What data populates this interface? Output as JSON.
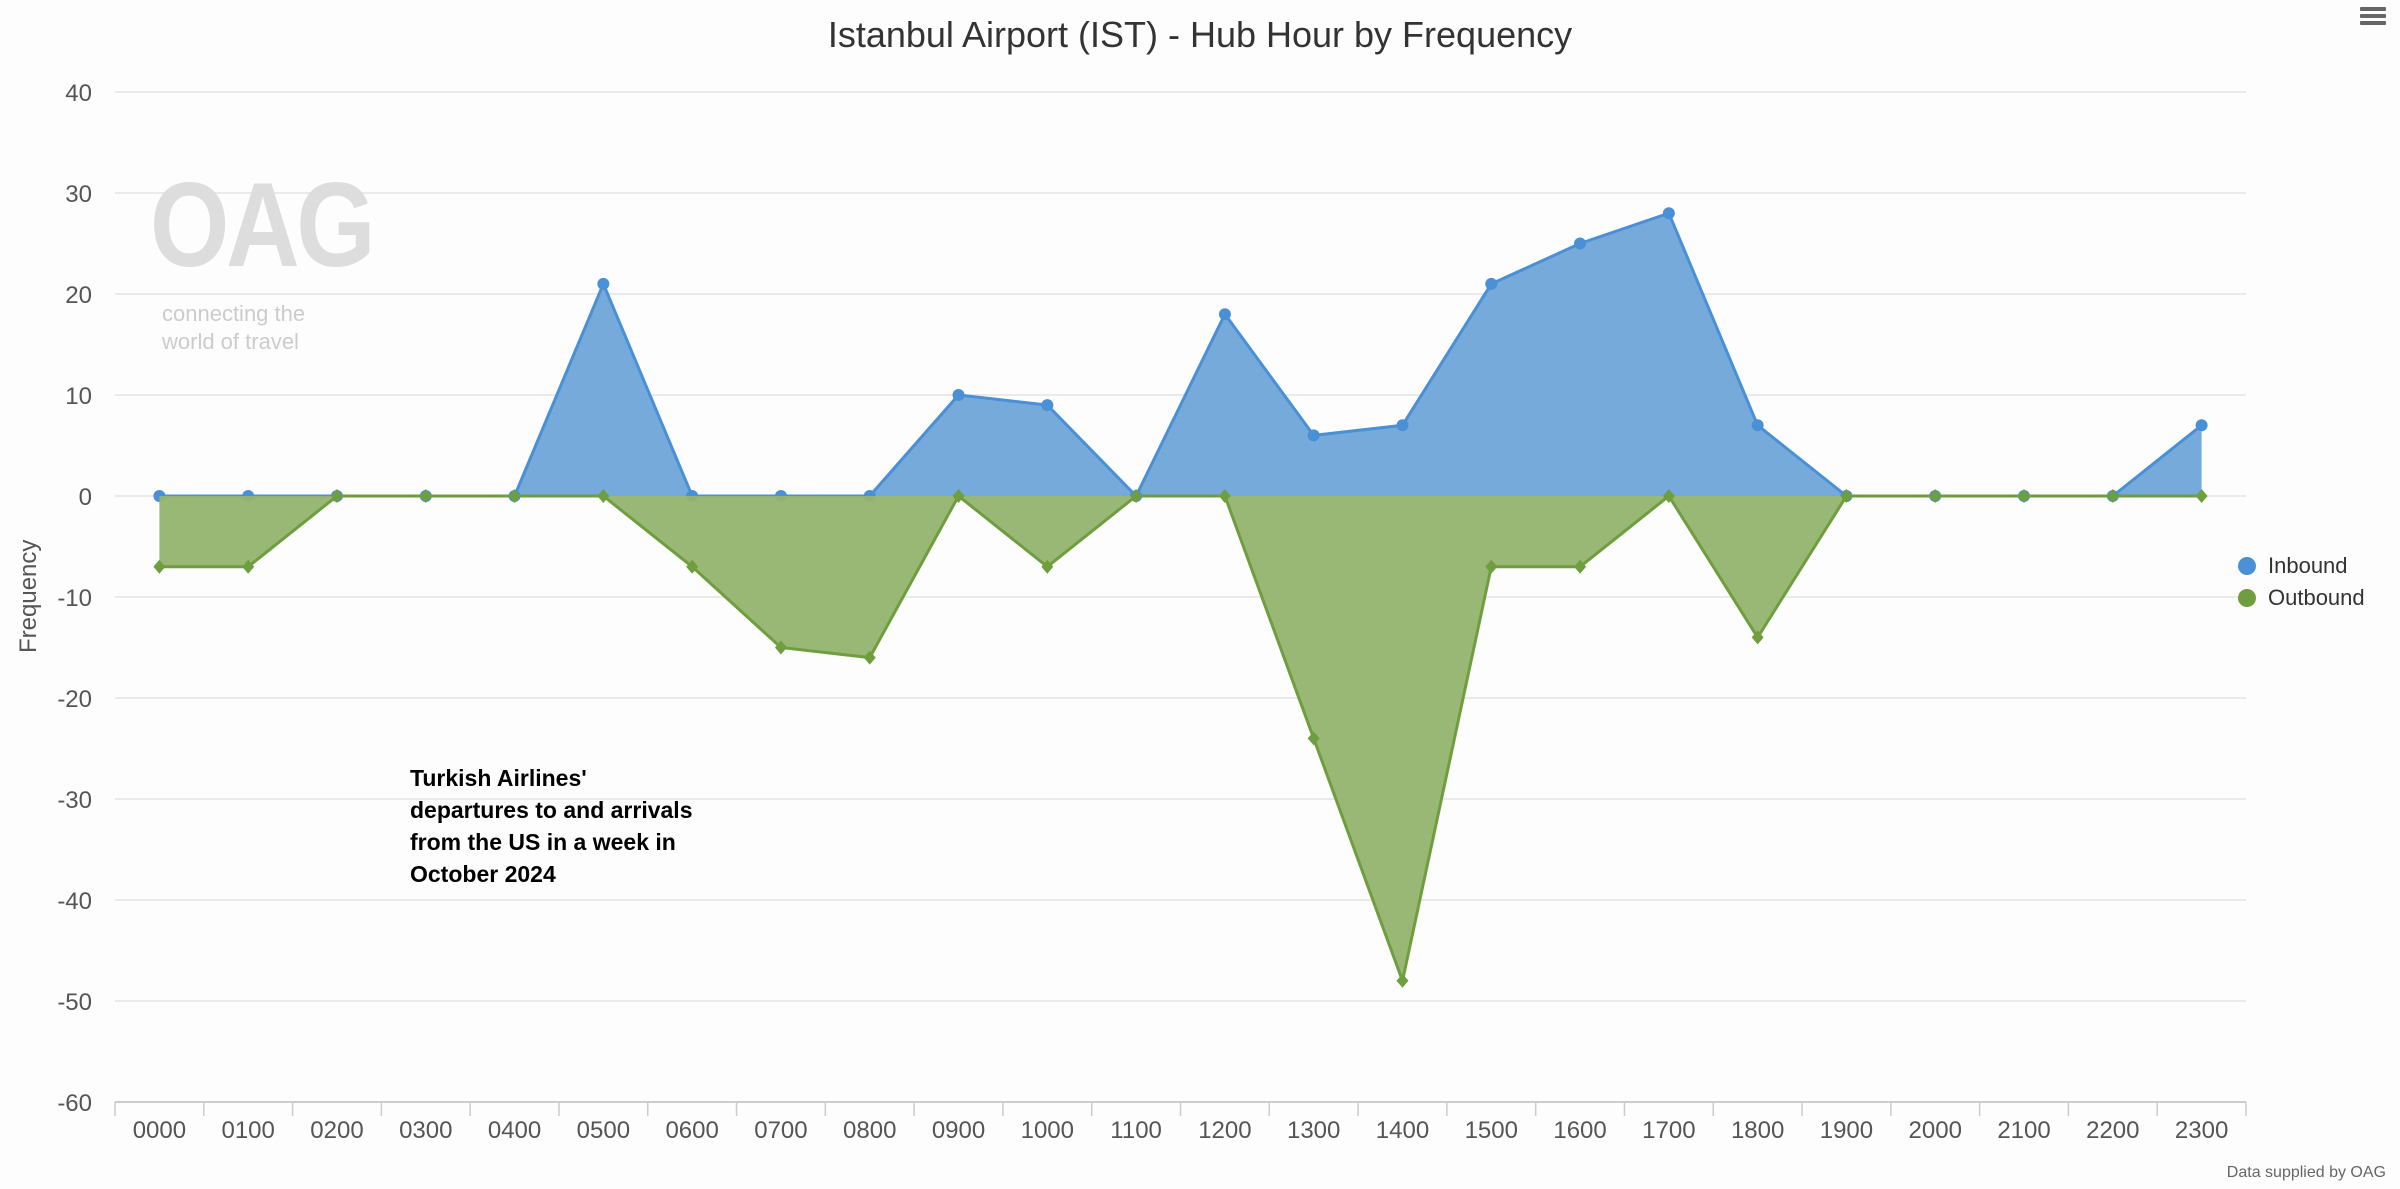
{
  "chart_data": {
    "type": "area",
    "title": "Istanbul Airport (IST) - Hub Hour by Frequency",
    "xlabel": "",
    "ylabel": "Frequency",
    "ylim": [
      -60,
      40
    ],
    "yticks": [
      40,
      30,
      20,
      10,
      0,
      -10,
      -20,
      -30,
      -40,
      -50,
      -60
    ],
    "grid": true,
    "legend_position": "right",
    "categories": [
      "0000",
      "0100",
      "0200",
      "0300",
      "0400",
      "0500",
      "0600",
      "0700",
      "0800",
      "0900",
      "1000",
      "1100",
      "1200",
      "1300",
      "1400",
      "1500",
      "1600",
      "1700",
      "1800",
      "1900",
      "2000",
      "2100",
      "2200",
      "2300"
    ],
    "series": [
      {
        "name": "Inbound",
        "color": "#4a90d6",
        "fill": "#6fa5d8",
        "marker": "circle",
        "values": [
          0,
          0,
          0,
          0,
          0,
          21,
          0,
          0,
          0,
          10,
          9,
          0,
          18,
          6,
          7,
          21,
          25,
          28,
          7,
          0,
          0,
          0,
          0,
          7
        ]
      },
      {
        "name": "Outbound",
        "color": "#6e9e3e",
        "fill": "#95b46e",
        "marker": "diamond",
        "values": [
          -7,
          -7,
          0,
          0,
          0,
          0,
          -7,
          -15,
          -16,
          0,
          -7,
          0,
          0,
          -24,
          -48,
          -7,
          -7,
          0,
          -14,
          0,
          0,
          0,
          0,
          0
        ]
      }
    ],
    "annotation": "Turkish Airlines' departures to and arrivals from the US in a week in October 2024"
  },
  "watermark": {
    "logo": "OAG",
    "tagline_1": "connecting the",
    "tagline_2": "world of travel"
  },
  "credit": "Data supplied by OAG"
}
